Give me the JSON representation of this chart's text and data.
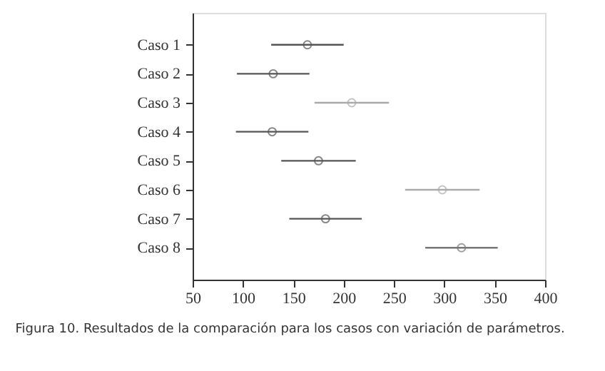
{
  "chart_data": {
    "type": "scatter",
    "orientation": "horizontal",
    "categories": [
      "Caso 1",
      "Caso 2",
      "Caso 3",
      "Caso 4",
      "Caso 5",
      "Caso 6",
      "Caso 7",
      "Caso 8"
    ],
    "values": [
      164,
      130,
      208,
      129,
      175,
      298,
      182,
      317
    ],
    "errors": [
      36,
      36,
      37,
      36,
      37,
      37,
      36,
      36
    ],
    "colors": [
      "#555555",
      "#555555",
      "#aaaaaa",
      "#555555",
      "#555555",
      "#aaaaaa",
      "#555555",
      "#777777"
    ],
    "marker": "circle",
    "grid": false,
    "xlim": [
      50,
      400
    ],
    "xticks": [
      50,
      100,
      150,
      200,
      250,
      300,
      350,
      400
    ],
    "annotations": [
      "Figura 10. Resultados de la comparación para los casos con variación de parámetros."
    ]
  }
}
